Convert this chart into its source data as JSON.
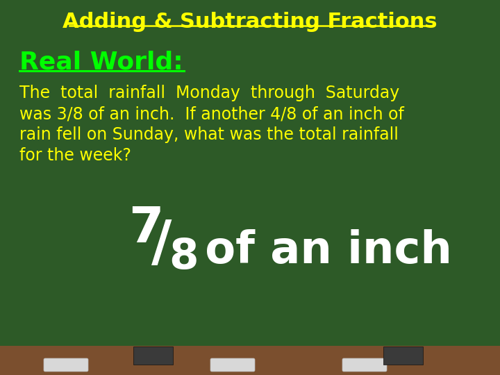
{
  "title": "Adding & Subtracting Fractions",
  "title_color": "#FFFF00",
  "title_fontsize": 22,
  "subtitle": "Real World:",
  "subtitle_color": "#00FF00",
  "subtitle_fontsize": 26,
  "body_line1": "The  total  rainfall  Monday  through  Saturday",
  "body_line2": "was 3/8 of an inch.  If another 4/8 of an inch of",
  "body_line3": "rain fell on Sunday, what was the total rainfall",
  "body_line4": "for the week?",
  "body_color": "#FFFF00",
  "body_fontsize": 17,
  "answer_numerator": "7",
  "answer_slash": "/",
  "answer_denominator": "8",
  "answer_suffix": " of an inch",
  "answer_color": "#FFFFFF",
  "answer_num_fontsize": 52,
  "answer_slash_fontsize": 58,
  "answer_denom_fontsize": 44,
  "answer_suffix_fontsize": 46,
  "bg_color": "#2D5A27",
  "ledge_color": "#7B4F2E",
  "chalk_color": "#D8D8D8",
  "eraser_color": "#3A3A3A"
}
